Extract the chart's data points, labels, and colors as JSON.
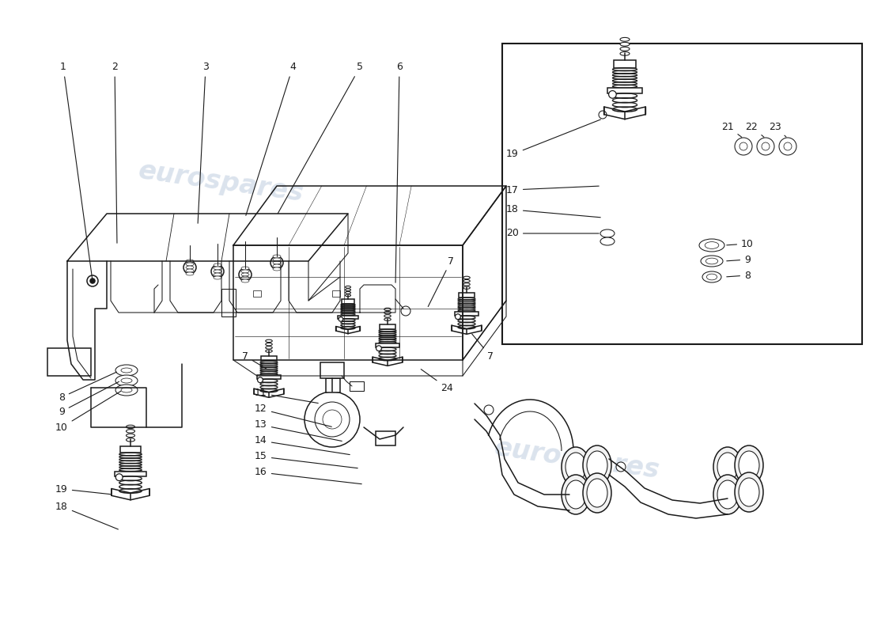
{
  "background_color": "#ffffff",
  "line_color": "#1a1a1a",
  "watermark_color": "#b8c8dc",
  "watermark_text": "eurospares",
  "figsize": [
    11.0,
    8.0
  ],
  "dpi": 100
}
